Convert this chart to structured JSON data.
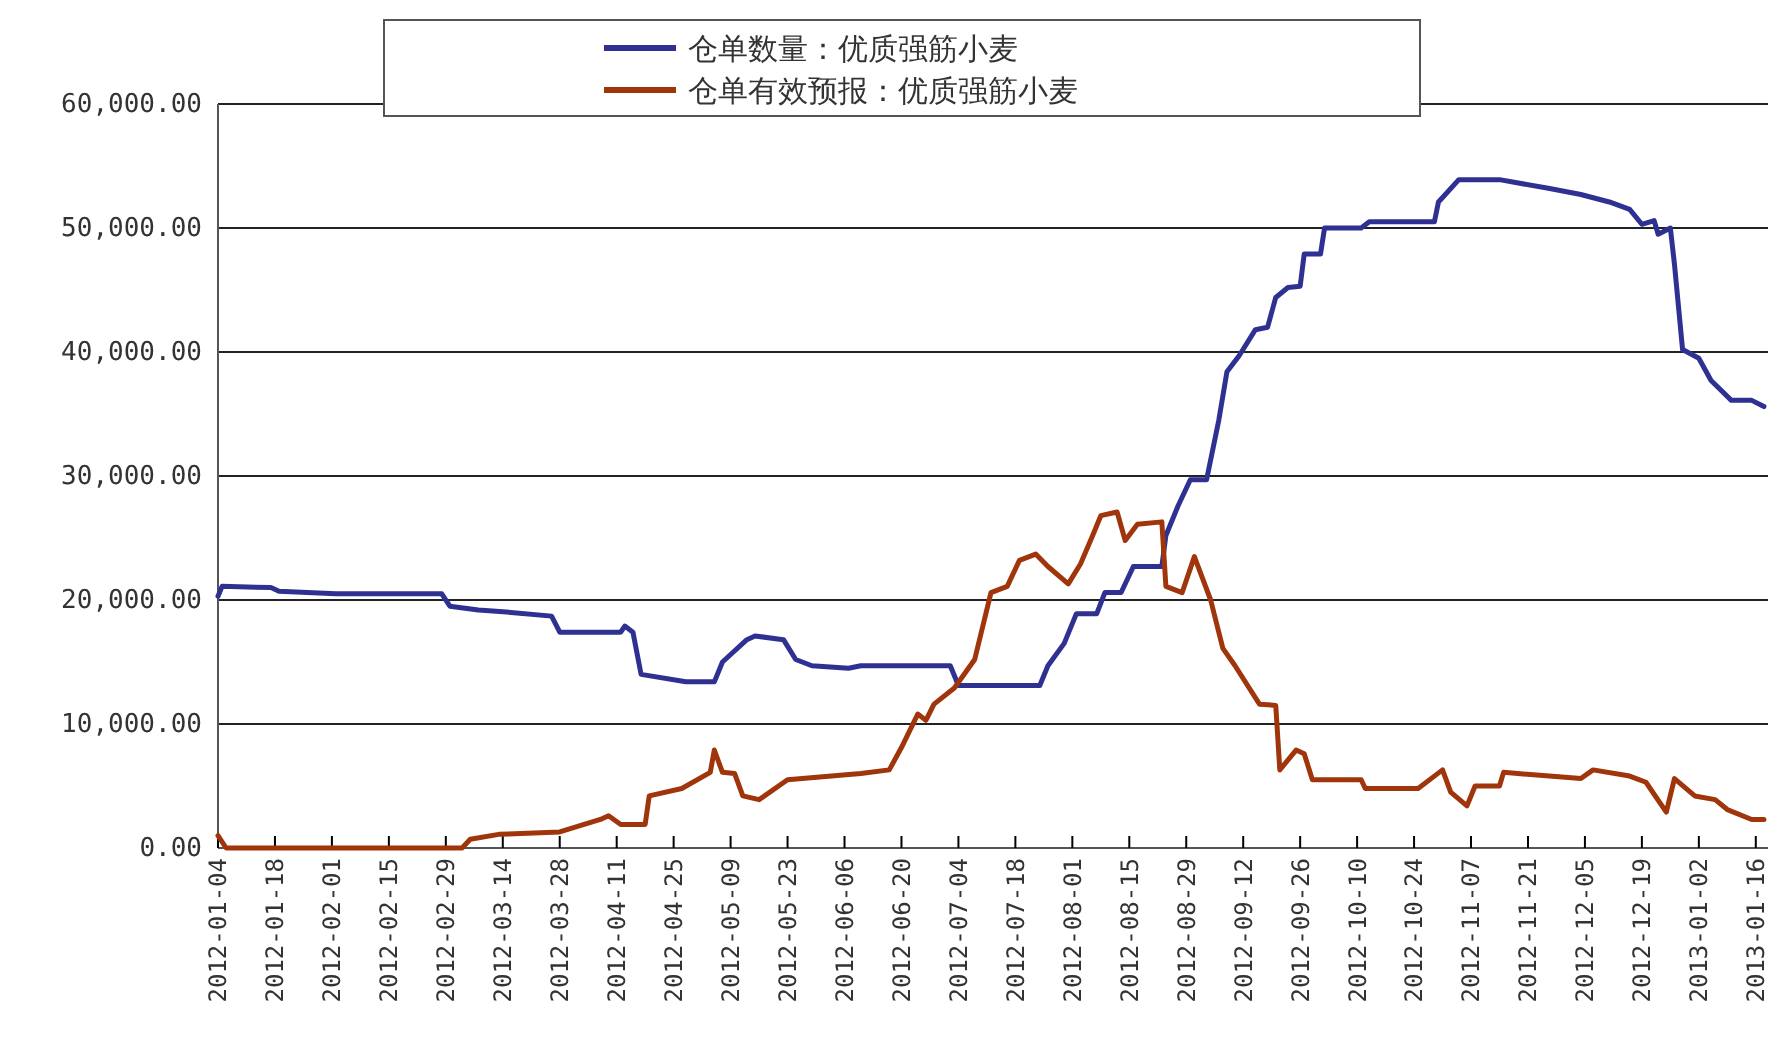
{
  "chart_data": {
    "type": "line",
    "legend": "top",
    "grid": "y",
    "line_style": "solid",
    "marker": "none",
    "xlim": [
      "2012-01-04",
      "2013-01-19"
    ],
    "ylim": [
      0,
      60000
    ],
    "yticks": [
      {
        "value": 0,
        "label": "0.00"
      },
      {
        "value": 10000,
        "label": "10,000.00"
      },
      {
        "value": 20000,
        "label": "20,000.00"
      },
      {
        "value": 30000,
        "label": "30,000.00"
      },
      {
        "value": 40000,
        "label": "40,000.00"
      },
      {
        "value": 50000,
        "label": "50,000.00"
      },
      {
        "value": 60000,
        "label": "60,000.00"
      }
    ],
    "xticks": [
      "2012-01-04",
      "2012-01-18",
      "2012-02-01",
      "2012-02-15",
      "2012-02-29",
      "2012-03-14",
      "2012-03-28",
      "2012-04-11",
      "2012-04-25",
      "2012-05-09",
      "2012-05-23",
      "2012-06-06",
      "2012-06-20",
      "2012-07-04",
      "2012-07-18",
      "2012-08-01",
      "2012-08-15",
      "2012-08-29",
      "2012-09-12",
      "2012-09-26",
      "2012-10-10",
      "2012-10-24",
      "2012-11-07",
      "2012-11-21",
      "2012-12-05",
      "2012-12-19",
      "2013-01-02",
      "2013-01-16"
    ],
    "series": [
      {
        "name": "仓单数量：优质强筋小麦",
        "color": "#2e3192",
        "x": [
          "2012-01-04",
          "2012-01-05",
          "2012-01-17",
          "2012-01-19",
          "2012-02-02",
          "2012-02-28",
          "2012-03-01",
          "2012-03-08",
          "2012-03-16",
          "2012-03-26",
          "2012-03-28",
          "2012-04-12",
          "2012-04-13",
          "2012-04-15",
          "2012-04-17",
          "2012-04-28",
          "2012-05-05",
          "2012-05-07",
          "2012-05-13",
          "2012-05-15",
          "2012-05-22",
          "2012-05-25",
          "2012-05-29",
          "2012-06-07",
          "2012-06-10",
          "2012-07-02",
          "2012-07-04",
          "2012-07-24",
          "2012-07-26",
          "2012-07-30",
          "2012-08-02",
          "2012-08-07",
          "2012-08-09",
          "2012-08-13",
          "2012-08-16",
          "2012-08-23",
          "2012-08-24",
          "2012-08-27",
          "2012-08-30",
          "2012-09-03",
          "2012-09-06",
          "2012-09-08",
          "2012-09-11",
          "2012-09-15",
          "2012-09-18",
          "2012-09-20",
          "2012-09-23",
          "2012-09-26",
          "2012-09-27",
          "2012-10-01",
          "2012-10-02",
          "2012-10-11",
          "2012-10-13",
          "2012-10-29",
          "2012-10-30",
          "2012-11-04",
          "2012-11-14",
          "2012-11-26",
          "2012-12-04",
          "2012-12-11",
          "2012-12-16",
          "2012-12-19",
          "2012-12-22",
          "2012-12-23",
          "2012-12-26",
          "2012-12-27",
          "2012-12-29",
          "2013-01-02",
          "2013-01-05",
          "2013-01-10",
          "2013-01-15",
          "2013-01-18"
        ],
        "values": [
          20300,
          21100,
          21000,
          20700,
          20500,
          20500,
          19500,
          19200,
          19000,
          18700,
          17400,
          17400,
          17900,
          17400,
          14000,
          13400,
          13400,
          15000,
          16800,
          17100,
          16800,
          15200,
          14700,
          14500,
          14700,
          14700,
          13100,
          13100,
          14700,
          16500,
          18900,
          18900,
          20600,
          20600,
          22700,
          22700,
          25200,
          27600,
          29700,
          29700,
          34500,
          38400,
          39700,
          41800,
          42000,
          44400,
          45200,
          45300,
          47900,
          47900,
          50000,
          50000,
          50500,
          50500,
          52100,
          53900,
          53900,
          53200,
          52700,
          52100,
          51500,
          50300,
          50600,
          49500,
          50000,
          47100,
          40200,
          39500,
          37700,
          36100,
          36100,
          35600
        ]
      },
      {
        "name": "仓单有效预报：优质强筋小麦",
        "color": "#a0350b",
        "x": [
          "2012-01-04",
          "2012-01-06",
          "2012-03-04",
          "2012-03-06",
          "2012-03-13",
          "2012-03-28",
          "2012-04-07",
          "2012-04-09",
          "2012-04-12",
          "2012-04-18",
          "2012-04-19",
          "2012-04-27",
          "2012-05-04",
          "2012-05-05",
          "2012-05-07",
          "2012-05-10",
          "2012-05-12",
          "2012-05-16",
          "2012-05-23",
          "2012-06-10",
          "2012-06-17",
          "2012-06-20",
          "2012-06-24",
          "2012-06-26",
          "2012-06-28",
          "2012-07-03",
          "2012-07-08",
          "2012-07-12",
          "2012-07-16",
          "2012-07-19",
          "2012-07-23",
          "2012-07-26",
          "2012-07-31",
          "2012-08-03",
          "2012-08-06",
          "2012-08-08",
          "2012-08-12",
          "2012-08-14",
          "2012-08-17",
          "2012-08-23",
          "2012-08-24",
          "2012-08-28",
          "2012-08-31",
          "2012-09-04",
          "2012-09-07",
          "2012-09-10",
          "2012-09-16",
          "2012-09-20",
          "2012-09-21",
          "2012-09-25",
          "2012-09-27",
          "2012-09-29",
          "2012-10-11",
          "2012-10-12",
          "2012-10-25",
          "2012-10-31",
          "2012-11-02",
          "2012-11-06",
          "2012-11-08",
          "2012-11-14",
          "2012-11-15",
          "2012-12-04",
          "2012-12-07",
          "2012-12-16",
          "2012-12-20",
          "2012-12-25",
          "2012-12-27",
          "2013-01-01",
          "2013-01-06",
          "2013-01-09",
          "2013-01-15",
          "2013-01-18"
        ],
        "values": [
          1000,
          0,
          0,
          700,
          1100,
          1300,
          2300,
          2600,
          1900,
          1900,
          4200,
          4800,
          6100,
          7900,
          6100,
          6000,
          4200,
          3900,
          5500,
          6000,
          6300,
          8100,
          10800,
          10300,
          11600,
          12900,
          15200,
          20600,
          21100,
          23200,
          23700,
          22700,
          21300,
          22900,
          25200,
          26800,
          27100,
          24800,
          26100,
          26300,
          21100,
          20600,
          23500,
          20000,
          16100,
          14700,
          11600,
          11500,
          6300,
          7900,
          7600,
          5500,
          5500,
          4800,
          4800,
          6300,
          4500,
          3400,
          5000,
          5000,
          6100,
          5600,
          6300,
          5800,
          5300,
          2900,
          5600,
          4200,
          3900,
          3100,
          2300,
          2300
        ]
      }
    ]
  }
}
